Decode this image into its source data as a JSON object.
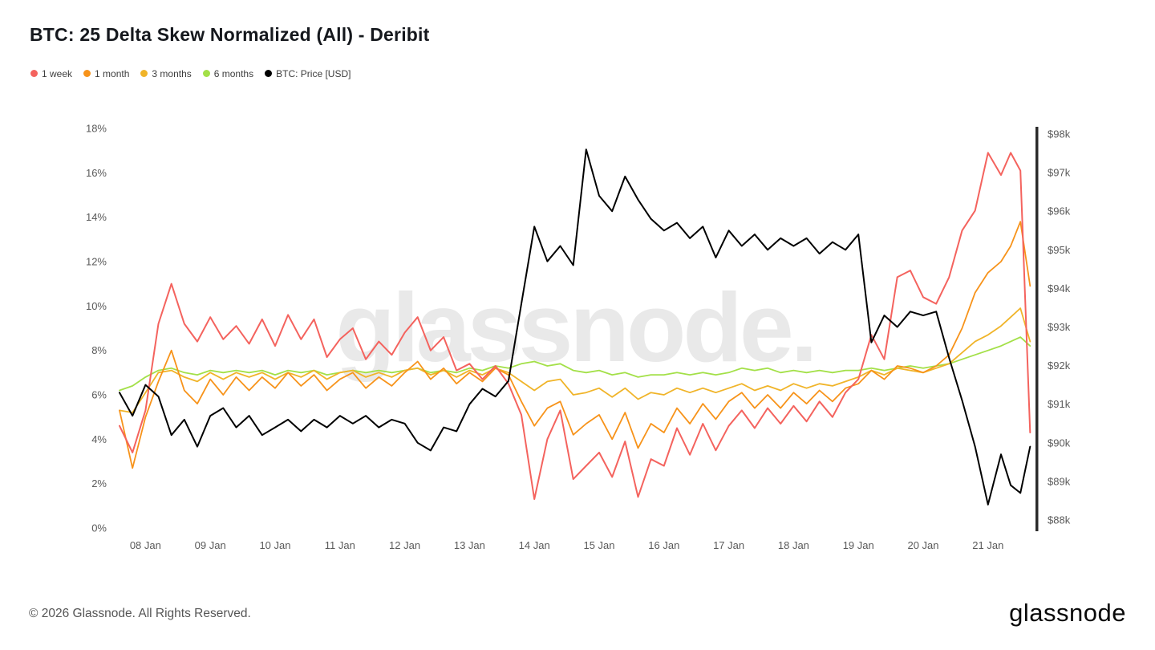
{
  "page": {
    "title": "BTC: 25 Delta Skew Normalized (All) - Deribit",
    "watermark": "glassnode.",
    "footer_copyright": "© 2026 Glassnode. All Rights Reserved.",
    "brand_logo": "glassnode"
  },
  "chart_data": {
    "type": "line",
    "title": "BTC: 25 Delta Skew Normalized (All) - Deribit",
    "grid": false,
    "legend_position": "top-left",
    "x_unit": "day of month (January)",
    "x_domain_days": [
      7.55,
      21.72
    ],
    "x_tick_values": [
      8,
      9,
      10,
      11,
      12,
      13,
      14,
      15,
      16,
      17,
      18,
      19,
      20,
      21
    ],
    "x_tick_labels": [
      "08 Jan",
      "09 Jan",
      "10 Jan",
      "11 Jan",
      "12 Jan",
      "13 Jan",
      "14 Jan",
      "15 Jan",
      "16 Jan",
      "17 Jan",
      "18 Jan",
      "19 Jan",
      "20 Jan",
      "21 Jan"
    ],
    "left_axis": {
      "unit": "%",
      "min": 0,
      "max": 18,
      "tick_values": [
        0,
        2,
        4,
        6,
        8,
        10,
        12,
        14,
        16,
        18
      ],
      "tick_labels": [
        "0%",
        "2%",
        "4%",
        "6%",
        "8%",
        "10%",
        "12%",
        "14%",
        "16%",
        "18%"
      ]
    },
    "right_axis": {
      "unit": "USD",
      "min": 88,
      "max": 98,
      "tick_values": [
        88,
        89,
        90,
        91,
        92,
        93,
        94,
        95,
        96,
        97,
        98
      ],
      "tick_labels": [
        "$88k",
        "$89k",
        "$90k",
        "$91k",
        "$92k",
        "$93k",
        "$94k",
        "$95k",
        "$96k",
        "$97k",
        "$98k"
      ]
    },
    "x": [
      7.6,
      7.8,
      8.0,
      8.2,
      8.4,
      8.6,
      8.8,
      9.0,
      9.2,
      9.4,
      9.6,
      9.8,
      10.0,
      10.2,
      10.4,
      10.6,
      10.8,
      11.0,
      11.2,
      11.4,
      11.6,
      11.8,
      12.0,
      12.2,
      12.4,
      12.6,
      12.8,
      13.0,
      13.2,
      13.4,
      13.6,
      13.8,
      14.0,
      14.2,
      14.4,
      14.6,
      14.8,
      15.0,
      15.2,
      15.4,
      15.6,
      15.8,
      16.0,
      16.2,
      16.4,
      16.6,
      16.8,
      17.0,
      17.2,
      17.4,
      17.6,
      17.8,
      18.0,
      18.2,
      18.4,
      18.6,
      18.8,
      19.0,
      19.2,
      19.4,
      19.6,
      19.8,
      20.0,
      20.2,
      20.4,
      20.6,
      20.8,
      21.0,
      21.2,
      21.35,
      21.5,
      21.65
    ],
    "series": [
      {
        "id": "1-week",
        "name": "1 week",
        "color": "#f4635e",
        "axis": "left",
        "unit": "%",
        "width": 2,
        "z": 4,
        "values": [
          4.6,
          3.4,
          5.3,
          9.2,
          11.0,
          9.2,
          8.4,
          9.5,
          8.5,
          9.1,
          8.3,
          9.4,
          8.2,
          9.6,
          8.5,
          9.4,
          7.7,
          8.5,
          9.0,
          7.6,
          8.4,
          7.8,
          8.8,
          9.5,
          8.0,
          8.6,
          7.1,
          7.4,
          6.7,
          7.3,
          6.5,
          5.1,
          1.3,
          4.0,
          5.3,
          2.2,
          2.8,
          3.4,
          2.3,
          3.9,
          1.4,
          3.1,
          2.8,
          4.5,
          3.3,
          4.7,
          3.5,
          4.6,
          5.3,
          4.5,
          5.4,
          4.7,
          5.5,
          4.8,
          5.7,
          5.0,
          6.1,
          6.7,
          8.7,
          7.6,
          11.3,
          11.6,
          10.4,
          10.1,
          11.3,
          13.4,
          14.3,
          16.9,
          15.9,
          16.9,
          16.1,
          4.3
        ]
      },
      {
        "id": "1-month",
        "name": "1 month",
        "color": "#f7931a",
        "axis": "left",
        "unit": "%",
        "width": 1.8,
        "z": 3,
        "values": [
          5.3,
          2.7,
          5.0,
          6.6,
          8.0,
          6.2,
          5.6,
          6.7,
          6.0,
          6.8,
          6.2,
          6.8,
          6.3,
          7.0,
          6.4,
          6.9,
          6.2,
          6.7,
          7.0,
          6.3,
          6.8,
          6.4,
          7.0,
          7.5,
          6.7,
          7.2,
          6.5,
          7.0,
          6.6,
          7.2,
          6.9,
          5.7,
          4.6,
          5.4,
          5.7,
          4.2,
          4.7,
          5.1,
          4.0,
          5.2,
          3.6,
          4.7,
          4.3,
          5.4,
          4.7,
          5.6,
          4.9,
          5.7,
          6.1,
          5.4,
          6.0,
          5.4,
          6.1,
          5.6,
          6.2,
          5.7,
          6.3,
          6.5,
          7.1,
          6.7,
          7.3,
          7.2,
          7.0,
          7.3,
          7.8,
          9.0,
          10.6,
          11.5,
          12.0,
          12.7,
          13.8,
          10.9
        ]
      },
      {
        "id": "3-months",
        "name": "3 months",
        "color": "#f0b429",
        "axis": "left",
        "unit": "%",
        "width": 1.8,
        "z": 2,
        "values": [
          5.3,
          5.2,
          6.1,
          7.0,
          7.1,
          6.8,
          6.6,
          7.0,
          6.7,
          7.0,
          6.8,
          7.0,
          6.7,
          7.0,
          6.8,
          7.1,
          6.7,
          7.0,
          7.1,
          6.8,
          7.0,
          6.8,
          7.1,
          7.2,
          6.9,
          7.1,
          6.8,
          7.1,
          6.9,
          7.2,
          7.0,
          6.6,
          6.2,
          6.6,
          6.7,
          6.0,
          6.1,
          6.3,
          5.9,
          6.3,
          5.8,
          6.1,
          6.0,
          6.3,
          6.1,
          6.3,
          6.1,
          6.3,
          6.5,
          6.2,
          6.4,
          6.2,
          6.5,
          6.3,
          6.5,
          6.4,
          6.6,
          6.8,
          7.1,
          6.9,
          7.2,
          7.1,
          7.0,
          7.2,
          7.4,
          7.9,
          8.4,
          8.7,
          9.1,
          9.5,
          9.9,
          8.4
        ]
      },
      {
        "id": "6-months",
        "name": "6 months",
        "color": "#a3e048",
        "axis": "left",
        "unit": "%",
        "width": 1.8,
        "z": 1,
        "values": [
          6.2,
          6.4,
          6.8,
          7.1,
          7.2,
          7.0,
          6.9,
          7.1,
          7.0,
          7.1,
          7.0,
          7.1,
          6.9,
          7.1,
          7.0,
          7.1,
          6.9,
          7.0,
          7.1,
          7.0,
          7.1,
          7.0,
          7.1,
          7.2,
          7.0,
          7.1,
          7.0,
          7.2,
          7.1,
          7.3,
          7.2,
          7.4,
          7.5,
          7.3,
          7.4,
          7.1,
          7.0,
          7.1,
          6.9,
          7.0,
          6.8,
          6.9,
          6.9,
          7.0,
          6.9,
          7.0,
          6.9,
          7.0,
          7.2,
          7.1,
          7.2,
          7.0,
          7.1,
          7.0,
          7.1,
          7.0,
          7.1,
          7.1,
          7.2,
          7.1,
          7.2,
          7.3,
          7.2,
          7.3,
          7.4,
          7.6,
          7.8,
          8.0,
          8.2,
          8.4,
          8.6,
          8.2
        ]
      },
      {
        "id": "btc-price",
        "name": "BTC: Price [USD]",
        "color": "#000000",
        "axis": "right",
        "unit": "thousand USD",
        "width": 2,
        "z": 5,
        "values": [
          91.3,
          90.7,
          91.5,
          91.2,
          90.2,
          90.6,
          89.9,
          90.7,
          90.9,
          90.4,
          90.7,
          90.2,
          90.4,
          90.6,
          90.3,
          90.6,
          90.4,
          90.7,
          90.5,
          90.7,
          90.4,
          90.6,
          90.5,
          90.0,
          89.8,
          90.4,
          90.3,
          91.0,
          91.4,
          91.2,
          91.6,
          93.6,
          95.6,
          94.7,
          95.1,
          94.6,
          97.6,
          96.4,
          96.0,
          96.9,
          96.3,
          95.8,
          95.5,
          95.7,
          95.3,
          95.6,
          94.8,
          95.5,
          95.1,
          95.4,
          95.0,
          95.3,
          95.1,
          95.3,
          94.9,
          95.2,
          95.0,
          95.4,
          92.6,
          93.3,
          93.0,
          93.4,
          93.3,
          93.4,
          92.2,
          91.1,
          89.9,
          88.4,
          89.7,
          88.9,
          88.7,
          89.9
        ]
      }
    ]
  }
}
